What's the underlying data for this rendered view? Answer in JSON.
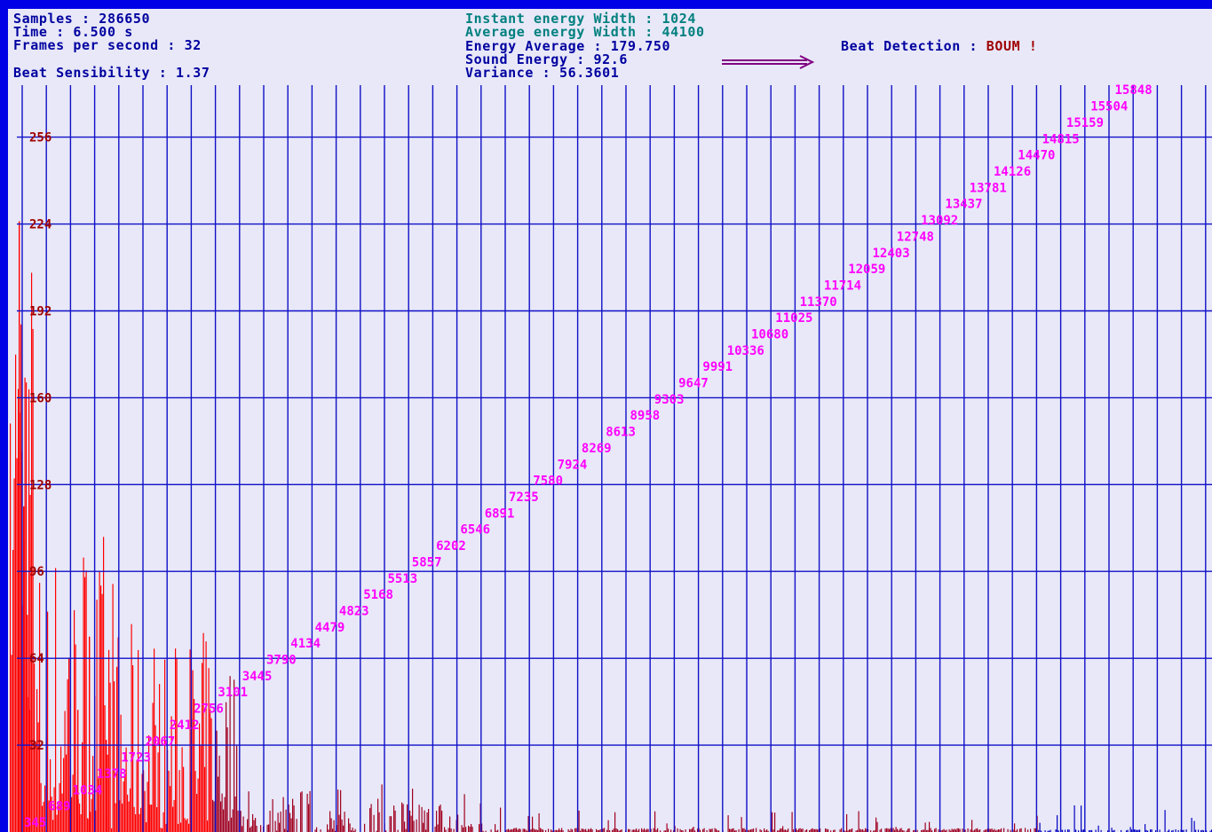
{
  "stats": {
    "samples": "Samples : 286650",
    "time": "Time : 6.500 s",
    "fps": "Frames per second : 32",
    "sensibility": "Beat Sensibility : 1.37",
    "instant_width": "Instant energy Width : 1024",
    "average_width": "Average energy Width : 44100",
    "energy_average": "Energy Average : 179.750",
    "sound_energy": "Sound Energy : 92.6",
    "variance": "Variance : 56.3601",
    "beat_label": "Beat Detection : ",
    "beat_value": "BOUM !"
  },
  "icons": {
    "arrow": "long-right-arrow-icon"
  },
  "colors": {
    "frame": "#0000e6",
    "background": "#e8e8f8",
    "grid": "#1010c8",
    "y_label": "#a00000",
    "freq_label": "#ff00ff",
    "spectrum_low": "#ff0000",
    "spectrum_mid": "#a00020",
    "spectrum_high": "#0000c0"
  },
  "chart_data": {
    "type": "bar",
    "y_ticks": [
      32,
      64,
      96,
      128,
      160,
      192,
      224,
      256
    ],
    "ylim": [
      0,
      280
    ],
    "frequency_labels": [
      345,
      689,
      1034,
      1378,
      1723,
      2067,
      2412,
      2756,
      3101,
      3445,
      3790,
      4134,
      4479,
      4823,
      5168,
      5513,
      5857,
      6202,
      6546,
      6891,
      7235,
      7580,
      7924,
      8269,
      8613,
      8958,
      9303,
      9647,
      9991,
      10336,
      10680,
      11025,
      11370,
      11714,
      12059,
      12403,
      12748,
      13092,
      13437,
      13781,
      14126,
      14470,
      14815,
      15159,
      15504,
      15848
    ],
    "grid": true,
    "spectrum_note": "FFT magnitude bars (approximate), strongest below ~2000 Hz"
  }
}
